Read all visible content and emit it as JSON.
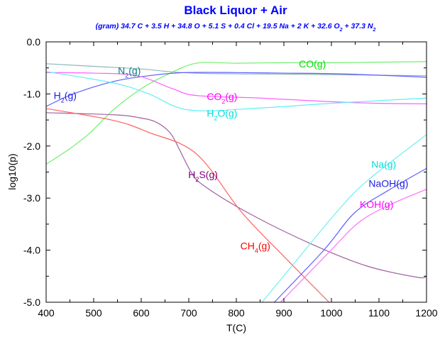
{
  "chart_data": {
    "type": "line",
    "title": "Black Liquor + Air",
    "subtitle": "(gram) 34.7 C + 3.5 H + 34.8 O + 5.1 S + 0.4 Cl + 19.5 Na + 2 K + 32.6 O2 + 37.3 N2",
    "xlabel": "T(C)",
    "ylabel": "log10(p)",
    "xlim": [
      400,
      1200
    ],
    "ylim": [
      -5.0,
      0.0
    ],
    "xticks": [
      "400",
      "500",
      "600",
      "700",
      "800",
      "900",
      "1000",
      "1100",
      "1200"
    ],
    "yticks": [
      "0.0",
      "-1.0",
      "-2.0",
      "-3.0",
      "-4.0",
      "-5.0"
    ],
    "grid": false,
    "legend": "none (inline curve labels)",
    "series": [
      {
        "name": "N2(g)",
        "color": "#008080",
        "line_color": "#8fb8b8",
        "label_at": [
          575,
          -0.55
        ],
        "x": [
          400,
          500,
          600,
          669,
          750,
          900,
          1000,
          1100,
          1200
        ],
        "y": [
          -0.42,
          -0.47,
          -0.52,
          -0.58,
          -0.61,
          -0.62,
          -0.63,
          -0.64,
          -0.65
        ]
      },
      {
        "name": "CO(g)",
        "color": "#00e000",
        "line_color": "#70f070",
        "label_at": [
          960,
          -0.42
        ],
        "x": [
          400,
          450,
          492,
          542,
          600,
          650,
          716,
          800,
          900,
          1000,
          1100,
          1200
        ],
        "y": [
          -2.35,
          -2.05,
          -1.75,
          -1.3,
          -0.9,
          -0.65,
          -0.41,
          -0.41,
          -0.4,
          -0.4,
          -0.39,
          -0.38
        ]
      },
      {
        "name": "H2(g)",
        "color": "#2020e0",
        "line_color": "#6060ff",
        "label_at": [
          440,
          -1.03
        ],
        "x": [
          400,
          457,
          542,
          616,
          691,
          800,
          900,
          1000,
          1100,
          1200
        ],
        "y": [
          -1.24,
          -1.0,
          -0.76,
          -0.65,
          -0.59,
          -0.59,
          -0.6,
          -0.61,
          -0.64,
          -0.68
        ]
      },
      {
        "name": "CO2(g)",
        "color": "#ff00ff",
        "line_color": "#ff60ff",
        "label_at": [
          770,
          -1.05
        ],
        "x": [
          400,
          500,
          591,
          666,
          716,
          851,
          1000,
          1100,
          1200
        ],
        "y": [
          -0.59,
          -0.6,
          -0.65,
          -0.9,
          -1.03,
          -1.08,
          -1.15,
          -1.18,
          -1.19
        ]
      },
      {
        "name": "H2O(g)",
        "color": "#00e0e0",
        "line_color": "#60f0f0",
        "label_at": [
          770,
          -1.37
        ],
        "x": [
          400,
          542,
          616,
          701,
          851,
          1000,
          1200
        ],
        "y": [
          -0.57,
          -0.79,
          -1.0,
          -1.31,
          -1.27,
          -1.18,
          -1.08
        ]
      },
      {
        "name": "H2S(g)",
        "color": "#800080",
        "line_color": "#a060a0",
        "label_at": [
          730,
          -2.55
        ],
        "x": [
          400,
          542,
          592,
          631,
          661,
          681,
          705,
          730,
          824,
          955,
          1073,
          1180,
          1200
        ],
        "y": [
          -1.36,
          -1.4,
          -1.45,
          -1.54,
          -1.75,
          -2.08,
          -2.5,
          -2.75,
          -3.28,
          -3.87,
          -4.3,
          -4.52,
          -4.5
        ]
      },
      {
        "name": "CH4(g)",
        "color": "#ff0000",
        "line_color": "#ff6060",
        "label_at": [
          840,
          -3.92
        ],
        "x": [
          400,
          542,
          616,
          716,
          812,
          900,
          995
        ],
        "y": [
          -1.28,
          -1.51,
          -1.74,
          -2.15,
          -3.28,
          -4.12,
          -5.0
        ]
      },
      {
        "name": "Na(g)",
        "color": "#00e0e0",
        "line_color": "#70f0f0",
        "label_at": [
          1110,
          -2.35
        ],
        "x": [
          854,
          919,
          1010,
          1075,
          1200
        ],
        "y": [
          -5.0,
          -4.28,
          -3.28,
          -2.67,
          -1.78
        ]
      },
      {
        "name": "NaOH(g)",
        "color": "#2020e0",
        "line_color": "#6060ff",
        "label_at": [
          1120,
          -2.72
        ],
        "x": [
          880,
          984,
          1049,
          1120,
          1200
        ],
        "y": [
          -5.0,
          -4.0,
          -3.28,
          -2.85,
          -2.43
        ]
      },
      {
        "name": "KOH(g)",
        "color": "#ff00ff",
        "line_color": "#ff70ff",
        "label_at": [
          1095,
          -3.12
        ],
        "x": [
          893,
          996,
          1060,
          1130,
          1200
        ],
        "y": [
          -5.0,
          -4.03,
          -3.45,
          -3.1,
          -2.83
        ]
      }
    ]
  }
}
